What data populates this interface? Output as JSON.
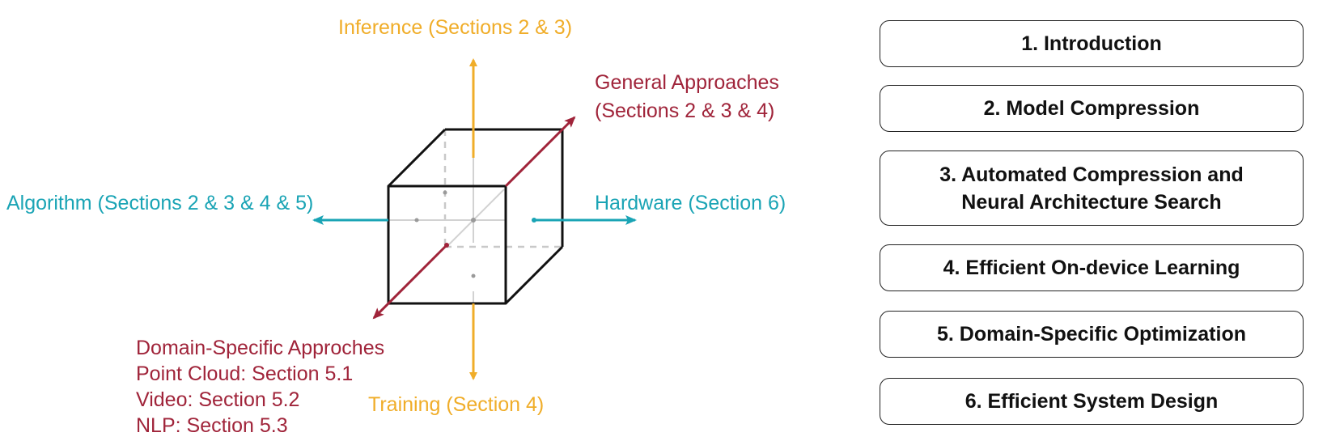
{
  "axes": {
    "inference": "Inference (Sections 2 & 3)",
    "training": "Training (Section 4)",
    "algorithm": "Algorithm (Sections 2 & 3 & 4 & 5)",
    "hardware": "Hardware (Section 6)",
    "general_line1": "General Approaches",
    "general_line2": "(Sections 2 & 3 & 4)",
    "domain_title": "Domain-Specific Approches",
    "domain_point_cloud": "Point Cloud: Section 5.1",
    "domain_video": "Video: Section 5.2",
    "domain_nlp": "NLP: Section 5.3"
  },
  "colors": {
    "inference_training": "#F0AD29",
    "algorithm_hardware": "#1AA4B5",
    "general_domain": "#A0243A"
  },
  "sections": [
    {
      "label": "1. Introduction"
    },
    {
      "label": "2. Model Compression"
    },
    {
      "label": "3. Automated Compression and\nNeural Architecture Search"
    },
    {
      "label": "4. Efficient On-device Learning"
    },
    {
      "label": "5. Domain-Specific Optimization"
    },
    {
      "label": "6. Efficient System Design"
    }
  ]
}
